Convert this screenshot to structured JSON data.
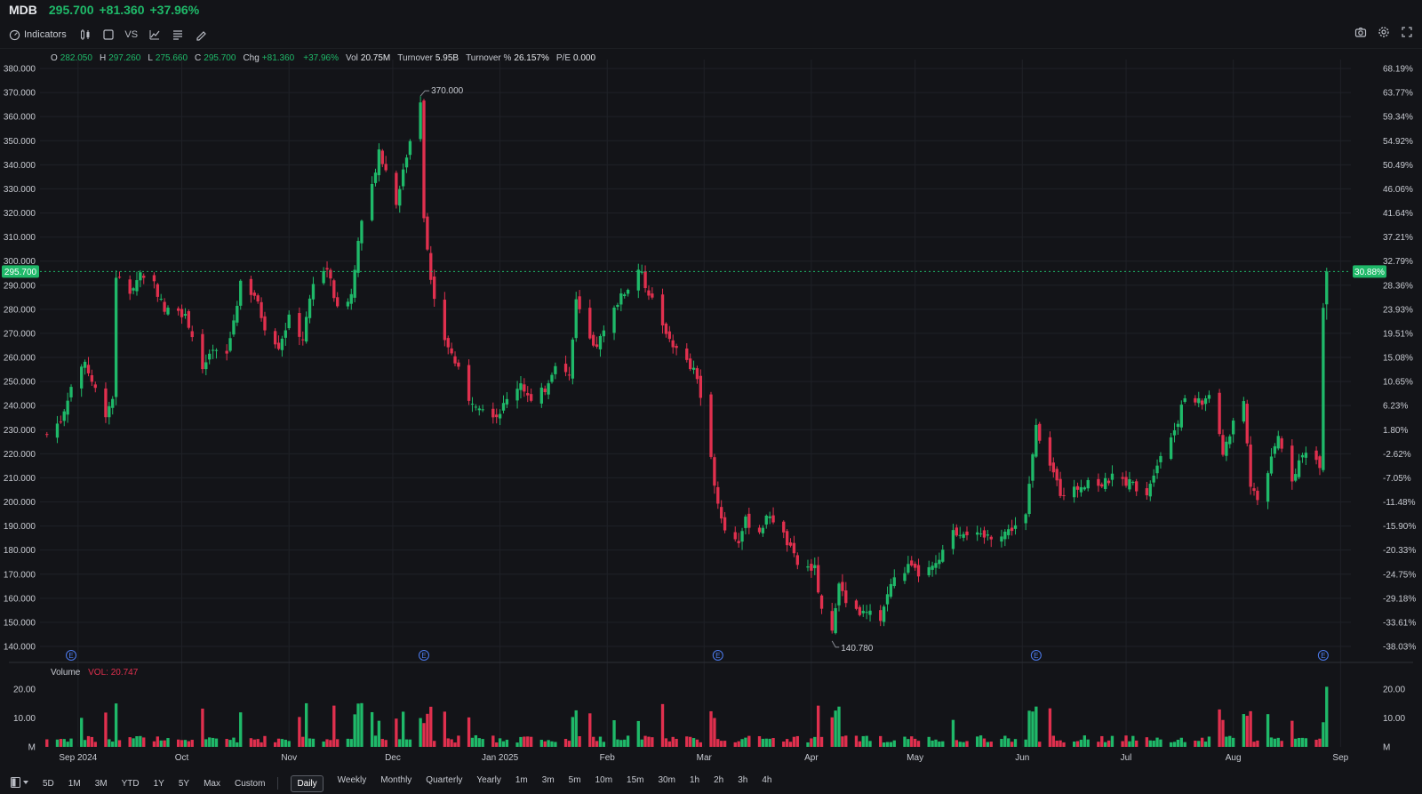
{
  "header": {
    "symbol": "MDB",
    "price": "295.700",
    "change": "+81.360",
    "change_pct": "+37.96%"
  },
  "toolbar": {
    "indicators_label": "Indicators",
    "vs_label": "VS"
  },
  "ohlc": {
    "o_label": "O",
    "o": "282.050",
    "h_label": "H",
    "h": "297.260",
    "l_label": "L",
    "l": "275.660",
    "c_label": "C",
    "c": "295.700",
    "chg_label": "Chg",
    "chg": "+81.360",
    "chg_pct": "+37.96%",
    "vol_label": "Vol",
    "vol": "20.75M",
    "turnover_label": "Turnover",
    "turnover": "5.95B",
    "turnover_pct_label": "Turnover %",
    "turnover_pct": "26.157%",
    "pe_label": "P/E",
    "pe": "0.000"
  },
  "volume": {
    "label": "Volume",
    "value_label": "VOL: 20.747"
  },
  "bottom": {
    "ranges": [
      "5D",
      "1M",
      "3M",
      "YTD",
      "1Y",
      "5Y",
      "Max",
      "Custom"
    ],
    "periods": [
      "Daily",
      "Weekly",
      "Monthly",
      "Quarterly",
      "Yearly",
      "1m",
      "3m",
      "5m",
      "10m",
      "15m",
      "30m",
      "1h",
      "2h",
      "3h",
      "4h"
    ],
    "active_period": "Daily"
  },
  "colors": {
    "up": "#1fb969",
    "down": "#e0304e",
    "background": "#131418",
    "grid": "#1f2127"
  },
  "chart_data": {
    "type": "candlestick",
    "price_axis": {
      "min": 140,
      "max": 380,
      "step": 10
    },
    "pct_axis_labels": [
      "68.19%",
      "63.77%",
      "59.34%",
      "54.92%",
      "50.49%",
      "46.06%",
      "41.64%",
      "37.21%",
      "32.79%",
      "28.36%",
      "23.93%",
      "19.51%",
      "15.08%",
      "10.65%",
      "6.23%",
      "1.80%",
      "-2.62%",
      "-7.05%",
      "-11.48%",
      "-15.90%",
      "-20.33%",
      "-24.75%",
      "-29.18%",
      "-33.61%",
      "-38.03%"
    ],
    "x_labels": [
      "Sep 2024",
      "Oct",
      "Nov",
      "Dec",
      "Jan 2025",
      "Feb",
      "Mar",
      "Apr",
      "May",
      "Jun",
      "Jul",
      "Aug",
      "Sep"
    ],
    "last_price_label": "295.700",
    "last_pct_label": "30.88%",
    "max_label": "370.000",
    "min_label": "140.780",
    "earnings_marker": "E",
    "volume_axis_labels": [
      "20.00",
      "10.00",
      "M"
    ],
    "volume_right_labels": [
      "20.00",
      "10.00",
      "M"
    ],
    "anchors": [
      [
        "2024-08-23",
        228
      ],
      [
        "2024-08-27",
        234
      ],
      [
        "2024-08-30",
        248
      ],
      [
        "2024-09-03",
        258
      ],
      [
        "2024-09-05",
        250
      ],
      [
        "2024-09-09",
        237
      ],
      [
        "2024-09-11",
        243
      ],
      [
        "2024-09-12",
        294
      ],
      [
        "2024-09-16",
        287
      ],
      [
        "2024-09-19",
        295
      ],
      [
        "2024-09-23",
        291
      ],
      [
        "2024-09-26",
        279
      ],
      [
        "2024-09-30",
        281
      ],
      [
        "2024-10-03",
        274
      ],
      [
        "2024-10-07",
        255
      ],
      [
        "2024-10-10",
        262
      ],
      [
        "2024-10-14",
        261
      ],
      [
        "2024-10-18",
        290
      ],
      [
        "2024-10-22",
        286
      ],
      [
        "2024-10-25",
        273
      ],
      [
        "2024-10-29",
        265
      ],
      [
        "2024-11-01",
        276
      ],
      [
        "2024-11-05",
        268
      ],
      [
        "2024-11-08",
        292
      ],
      [
        "2024-11-12",
        297
      ],
      [
        "2024-11-15",
        280
      ],
      [
        "2024-11-19",
        286
      ],
      [
        "2024-11-21",
        310
      ],
      [
        "2024-11-25",
        331
      ],
      [
        "2024-11-27",
        346
      ],
      [
        "2024-12-02",
        325
      ],
      [
        "2024-12-04",
        338
      ],
      [
        "2024-12-06",
        350
      ],
      [
        "2024-12-09",
        367
      ],
      [
        "2024-12-10",
        318
      ],
      [
        "2024-12-12",
        292
      ],
      [
        "2024-12-16",
        268
      ],
      [
        "2024-12-19",
        258
      ],
      [
        "2024-12-23",
        243
      ],
      [
        "2024-12-27",
        240
      ],
      [
        "2024-12-31",
        236
      ],
      [
        "2025-01-03",
        242
      ],
      [
        "2025-01-07",
        250
      ],
      [
        "2025-01-10",
        241
      ],
      [
        "2025-01-14",
        247
      ],
      [
        "2025-01-17",
        258
      ],
      [
        "2025-01-21",
        252
      ],
      [
        "2025-01-23",
        283
      ],
      [
        "2025-01-28",
        263
      ],
      [
        "2025-01-31",
        270
      ],
      [
        "2025-02-04",
        283
      ],
      [
        "2025-02-07",
        289
      ],
      [
        "2025-02-10",
        297
      ],
      [
        "2025-02-13",
        287
      ],
      [
        "2025-02-18",
        271
      ],
      [
        "2025-02-21",
        263
      ],
      [
        "2025-02-25",
        256
      ],
      [
        "2025-02-27",
        252
      ],
      [
        "2025-03-05",
        200
      ],
      [
        "2025-03-07",
        188
      ],
      [
        "2025-03-11",
        184
      ],
      [
        "2025-03-13",
        192
      ],
      [
        "2025-03-17",
        188
      ],
      [
        "2025-03-20",
        195
      ],
      [
        "2025-03-24",
        186
      ],
      [
        "2025-03-28",
        174
      ],
      [
        "2025-04-02",
        172
      ],
      [
        "2025-04-04",
        155
      ],
      [
        "2025-04-07",
        146
      ],
      [
        "2025-04-09",
        168
      ],
      [
        "2025-04-11",
        159
      ],
      [
        "2025-04-15",
        154
      ],
      [
        "2025-04-21",
        152
      ],
      [
        "2025-04-24",
        166
      ],
      [
        "2025-04-29",
        173
      ],
      [
        "2025-05-02",
        170
      ],
      [
        "2025-05-07",
        173
      ],
      [
        "2025-05-12",
        187
      ],
      [
        "2025-05-15",
        188
      ],
      [
        "2025-05-20",
        185
      ],
      [
        "2025-05-23",
        186
      ],
      [
        "2025-05-28",
        188
      ],
      [
        "2025-06-02",
        194
      ],
      [
        "2025-06-05",
        231
      ],
      [
        "2025-06-09",
        216
      ],
      [
        "2025-06-12",
        204
      ],
      [
        "2025-06-16",
        205
      ],
      [
        "2025-06-20",
        209
      ],
      [
        "2025-06-24",
        207
      ],
      [
        "2025-06-27",
        210
      ],
      [
        "2025-07-02",
        208
      ],
      [
        "2025-07-07",
        204
      ],
      [
        "2025-07-10",
        217
      ],
      [
        "2025-07-15",
        230
      ],
      [
        "2025-07-18",
        243
      ],
      [
        "2025-07-23",
        241
      ],
      [
        "2025-07-25",
        245
      ],
      [
        "2025-07-29",
        220
      ],
      [
        "2025-08-01",
        233
      ],
      [
        "2025-08-04",
        242
      ],
      [
        "2025-08-06",
        206
      ],
      [
        "2025-08-08",
        201
      ],
      [
        "2025-08-11",
        212
      ],
      [
        "2025-08-14",
        227
      ],
      [
        "2025-08-18",
        210
      ],
      [
        "2025-08-22",
        222
      ],
      [
        "2025-08-26",
        216
      ],
      [
        "2025-08-27",
        282
      ],
      [
        "2025-08-28",
        295.7
      ]
    ]
  }
}
